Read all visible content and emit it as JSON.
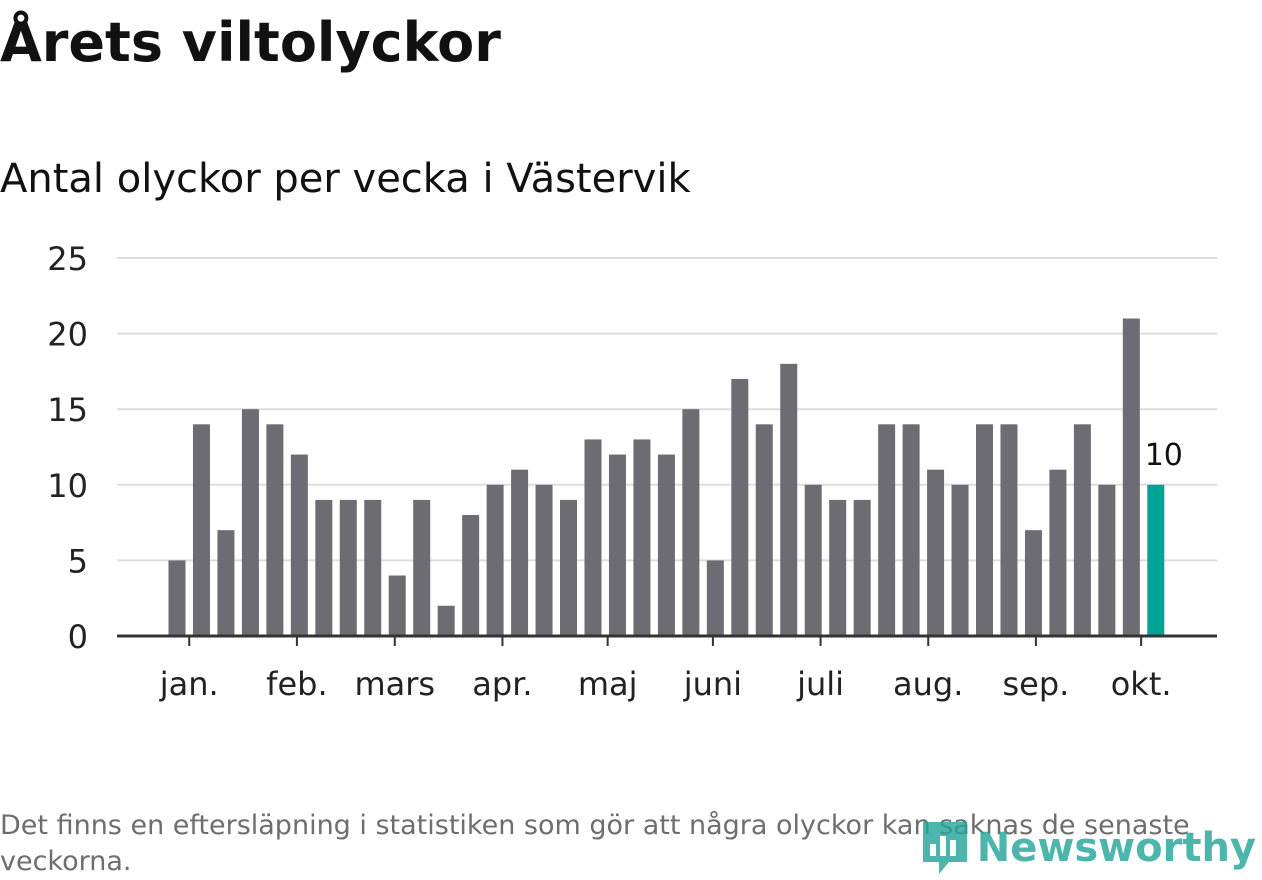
{
  "title": "Årets viltolyckor",
  "subtitle": "Antal olyckor per vecka i Västervik",
  "footnote": "Det finns en eftersläpning i statistiken som gör att några olyckor kan saknas de senaste veckorna.",
  "logo": {
    "text": "Newsworthy",
    "icon": "newsworthy-logo-icon"
  },
  "colors": {
    "bar": "#6d6c72",
    "highlight": "#00a396",
    "grid": "#dddddd",
    "axis": "#333333",
    "text": "#111111",
    "tick_text": "#222222",
    "footnote": "#6e6e6e",
    "logo": "#26a69a"
  },
  "chart_data": {
    "type": "bar",
    "title": "Årets viltolyckor",
    "subtitle": "Antal olyckor per vecka i Västervik",
    "values": [
      5,
      14,
      7,
      15,
      14,
      12,
      9,
      9,
      9,
      4,
      9,
      2,
      8,
      10,
      11,
      10,
      9,
      13,
      12,
      13,
      12,
      15,
      5,
      17,
      14,
      18,
      10,
      9,
      9,
      14,
      14,
      11,
      10,
      14,
      14,
      7,
      11,
      14,
      10,
      21,
      10
    ],
    "highlight_last": true,
    "highlight_label": "10",
    "ylim": [
      0,
      25
    ],
    "yticks": [
      0,
      5,
      10,
      15,
      20,
      25
    ],
    "month_ticks": [
      {
        "label": "jan.",
        "week": 0.5
      },
      {
        "label": "feb.",
        "week": 4.9
      },
      {
        "label": "mars",
        "week": 8.9
      },
      {
        "label": "apr.",
        "week": 13.3
      },
      {
        "label": "maj",
        "week": 17.6
      },
      {
        "label": "juni",
        "week": 21.9
      },
      {
        "label": "juli",
        "week": 26.3
      },
      {
        "label": "aug.",
        "week": 30.7
      },
      {
        "label": "sep.",
        "week": 35.1
      },
      {
        "label": "okt.",
        "week": 39.4
      }
    ],
    "grid": true,
    "legend": "none",
    "xlabel": "",
    "ylabel": ""
  }
}
